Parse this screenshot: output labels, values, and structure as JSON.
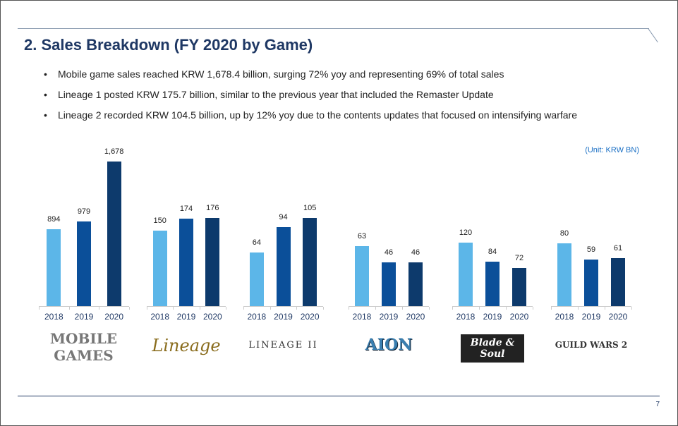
{
  "title": "2. Sales Breakdown (FY 2020 by Game)",
  "bullets": [
    "Mobile game sales reached KRW 1,678.4 billion, surging 72% yoy and representing 69% of total sales",
    "Lineage 1 posted KRW 175.7 billion, similar to the previous year that included the Remaster Update",
    "Lineage 2 recorded KRW 104.5 billion, up by 12% yoy due to the contents updates that focused on intensifying warfare"
  ],
  "unit": "(Unit: KRW BN)",
  "page_number": "7",
  "colors": {
    "y2018": "#5cb6e8",
    "y2019": "#0b4f99",
    "y2020": "#0d3a6c",
    "title": "#1f3864"
  },
  "chart_data": [
    {
      "type": "bar",
      "title": "MOBILE GAMES",
      "categories": [
        "2018",
        "2019",
        "2020"
      ],
      "values": [
        894,
        979,
        1678
      ],
      "labels": [
        "894",
        "979",
        "1,678"
      ]
    },
    {
      "type": "bar",
      "title": "Lineage",
      "categories": [
        "2018",
        "2019",
        "2020"
      ],
      "values": [
        150,
        174,
        176
      ],
      "labels": [
        "150",
        "174",
        "176"
      ]
    },
    {
      "type": "bar",
      "title": "LINEAGE II",
      "categories": [
        "2018",
        "2019",
        "2020"
      ],
      "values": [
        64,
        94,
        105
      ],
      "labels": [
        "64",
        "94",
        "105"
      ]
    },
    {
      "type": "bar",
      "title": "AION",
      "categories": [
        "2018",
        "2019",
        "2020"
      ],
      "values": [
        63,
        46,
        46
      ],
      "labels": [
        "63",
        "46",
        "46"
      ]
    },
    {
      "type": "bar",
      "title": "Blade & Soul",
      "categories": [
        "2018",
        "2019",
        "2020"
      ],
      "values": [
        120,
        84,
        72
      ],
      "labels": [
        "120",
        "84",
        "72"
      ]
    },
    {
      "type": "bar",
      "title": "GUILD WARS 2",
      "categories": [
        "2018",
        "2019",
        "2020"
      ],
      "values": [
        80,
        59,
        61
      ],
      "labels": [
        "80",
        "59",
        "61"
      ]
    }
  ]
}
